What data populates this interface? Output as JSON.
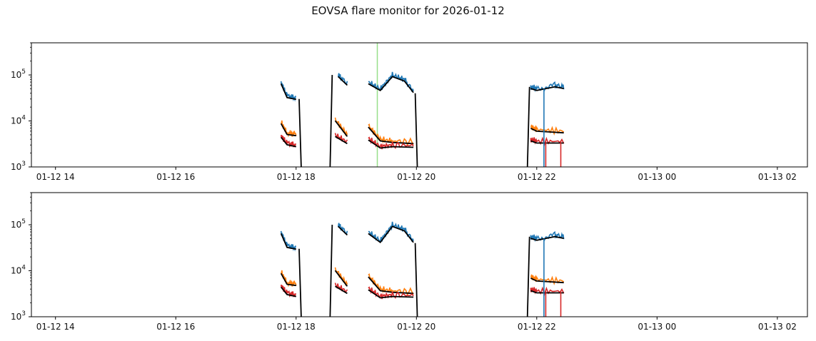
{
  "chart_data": {
    "type": "line",
    "title": "EOVSA flare monitor for 2026-01-12",
    "x_tick_labels": [
      "01-12 14",
      "01-12 16",
      "01-12 18",
      "01-12 20",
      "01-12 22",
      "01-13 00",
      "01-13 02"
    ],
    "x_tick_hours": [
      14,
      16,
      18,
      20,
      22,
      24,
      26
    ],
    "xlim_hours": [
      13.6,
      26.5
    ],
    "y_scale": "log",
    "ylim": [
      1000,
      500000
    ],
    "y_ticks": [
      1000,
      10000,
      100000
    ],
    "y_tick_labels": [
      {
        "base": "10",
        "exp": "3"
      },
      {
        "base": "10",
        "exp": "4"
      },
      {
        "base": "10",
        "exp": "5"
      }
    ],
    "grid": false,
    "colors": {
      "blue": "#1f77b4",
      "orange": "#ff7f0e",
      "red": "#d62728",
      "black": "#000000",
      "marker": "#98df8a"
    },
    "panels": [
      {
        "marker_line_hour": 19.35,
        "series": [
          {
            "color": "blue",
            "values": [
              [
                17.75,
                70000
              ],
              [
                17.85,
                35000
              ],
              [
                18.0,
                32000
              ],
              [
                18.7,
                100000
              ],
              [
                18.85,
                65000
              ],
              [
                19.2,
                70000
              ],
              [
                19.4,
                50000
              ],
              [
                19.6,
                100000
              ],
              [
                19.8,
                80000
              ],
              [
                19.95,
                45000
              ],
              [
                21.9,
                55000
              ],
              [
                22.0,
                50000
              ],
              [
                22.3,
                60000
              ],
              [
                22.45,
                55000
              ]
            ]
          },
          {
            "color": "orange",
            "values": [
              [
                17.75,
                9500
              ],
              [
                17.85,
                5500
              ],
              [
                18.0,
                5200
              ],
              [
                18.65,
                11000
              ],
              [
                18.85,
                5000
              ],
              [
                19.2,
                8000
              ],
              [
                19.4,
                4000
              ],
              [
                19.6,
                3700
              ],
              [
                19.95,
                3500
              ],
              [
                21.9,
                7500
              ],
              [
                22.0,
                6500
              ],
              [
                22.45,
                6000
              ]
            ]
          },
          {
            "color": "red",
            "values": [
              [
                17.75,
                4800
              ],
              [
                17.85,
                3300
              ],
              [
                18.0,
                3000
              ],
              [
                18.65,
                5000
              ],
              [
                18.85,
                3500
              ],
              [
                19.2,
                4200
              ],
              [
                19.4,
                2800
              ],
              [
                19.6,
                3000
              ],
              [
                19.95,
                2900
              ],
              [
                21.9,
                4000
              ],
              [
                22.0,
                3600
              ],
              [
                22.45,
                3600
              ]
            ]
          }
        ]
      },
      {
        "series": [
          {
            "color": "blue",
            "values": [
              [
                17.75,
                70000
              ],
              [
                17.85,
                35000
              ],
              [
                18.0,
                32000
              ],
              [
                18.7,
                100000
              ],
              [
                18.85,
                65000
              ],
              [
                19.2,
                70000
              ],
              [
                19.4,
                45000
              ],
              [
                19.6,
                100000
              ],
              [
                19.8,
                80000
              ],
              [
                19.95,
                45000
              ],
              [
                21.9,
                55000
              ],
              [
                22.0,
                50000
              ],
              [
                22.3,
                60000
              ],
              [
                22.45,
                55000
              ]
            ]
          },
          {
            "color": "orange",
            "values": [
              [
                17.75,
                9500
              ],
              [
                17.85,
                5500
              ],
              [
                18.0,
                5200
              ],
              [
                18.65,
                11000
              ],
              [
                18.85,
                5000
              ],
              [
                19.2,
                8000
              ],
              [
                19.4,
                4000
              ],
              [
                19.6,
                3700
              ],
              [
                19.95,
                3500
              ],
              [
                21.9,
                7500
              ],
              [
                22.0,
                6500
              ],
              [
                22.45,
                6000
              ]
            ]
          },
          {
            "color": "red",
            "values": [
              [
                17.75,
                4800
              ],
              [
                17.85,
                3300
              ],
              [
                18.0,
                3000
              ],
              [
                18.65,
                5000
              ],
              [
                18.85,
                3500
              ],
              [
                19.2,
                4200
              ],
              [
                19.4,
                2800
              ],
              [
                19.6,
                3000
              ],
              [
                19.95,
                2900
              ],
              [
                21.9,
                4000
              ],
              [
                22.0,
                3600
              ],
              [
                22.45,
                3600
              ]
            ]
          }
        ]
      }
    ]
  }
}
